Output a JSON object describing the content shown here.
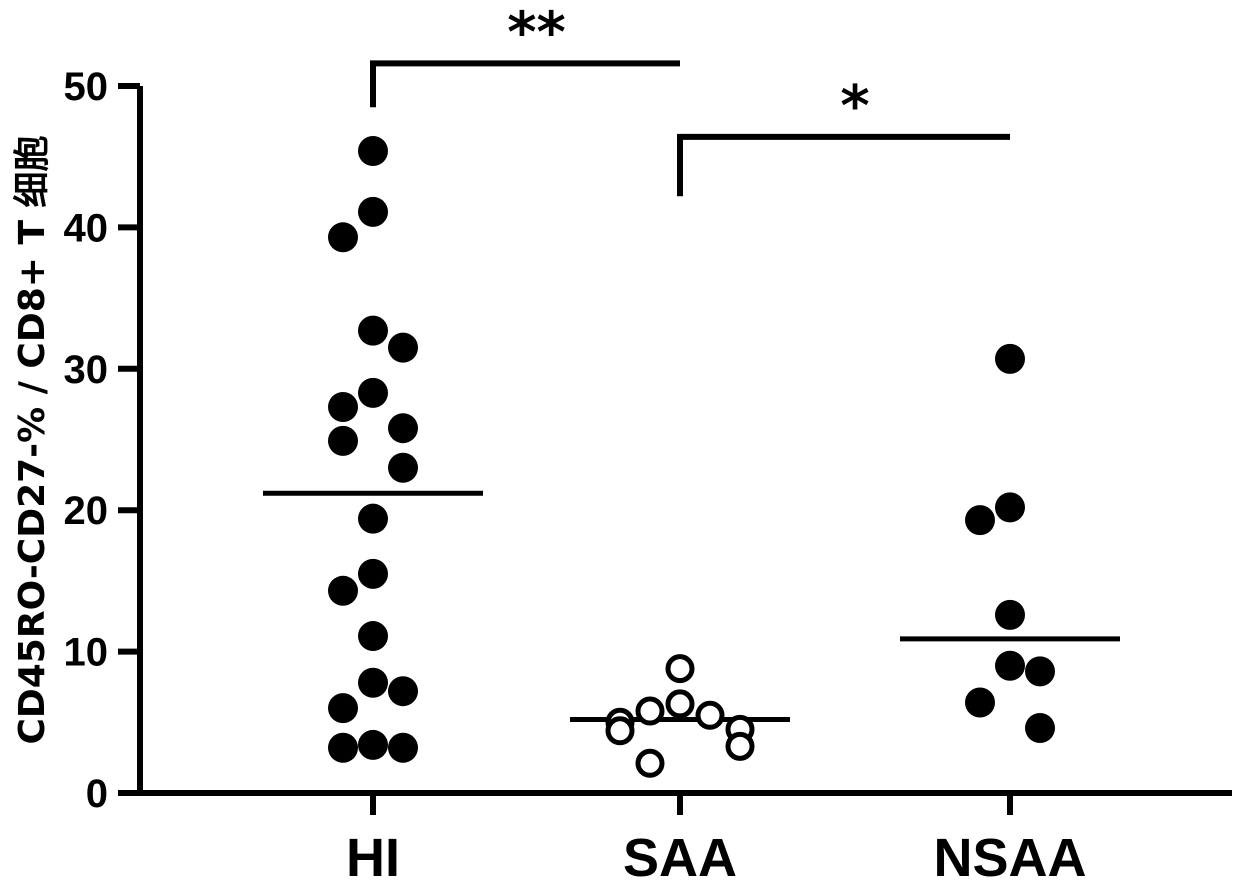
{
  "chart_data": {
    "type": "scatter",
    "title": "",
    "xlabel": "",
    "ylabel": "CD45RO-CD27-% / CD8+ T 细胞",
    "ylim": [
      0,
      50
    ],
    "yticks": [
      0,
      10,
      20,
      30,
      40,
      50
    ],
    "categories": [
      "HI",
      "SAA",
      "NSAA"
    ],
    "grid": false,
    "legend": "none",
    "series": [
      {
        "category": "HI",
        "marker": "filled-circle",
        "mean": 21.2,
        "values": [
          45.4,
          41.1,
          39.3,
          32.7,
          31.5,
          28.3,
          27.3,
          25.8,
          24.9,
          23.0,
          19.4,
          15.5,
          14.3,
          11.1,
          7.8,
          7.2,
          6.0,
          3.4,
          3.2,
          3.2
        ]
      },
      {
        "category": "SAA",
        "marker": "open-circle",
        "mean": 5.2,
        "values": [
          8.8,
          6.3,
          5.8,
          5.5,
          5.0,
          4.5,
          4.4,
          3.3,
          2.1
        ]
      },
      {
        "category": "NSAA",
        "marker": "filled-circle",
        "mean": 10.9,
        "values": [
          30.7,
          20.2,
          19.3,
          12.6,
          9.0,
          8.6,
          6.4,
          4.6
        ]
      }
    ],
    "annotations": [
      {
        "text": "**",
        "from": "HI",
        "to": "SAA",
        "level": 51.6,
        "drop_left": 48.5,
        "drop_right": 51.6
      },
      {
        "text": "*",
        "from": "SAA",
        "to": "NSAA",
        "level": 46.4,
        "drop_left": 42.2,
        "drop_right": 46.4
      }
    ]
  },
  "colors": {
    "axis": "#000000",
    "marker": "#000000",
    "background": "#ffffff"
  }
}
